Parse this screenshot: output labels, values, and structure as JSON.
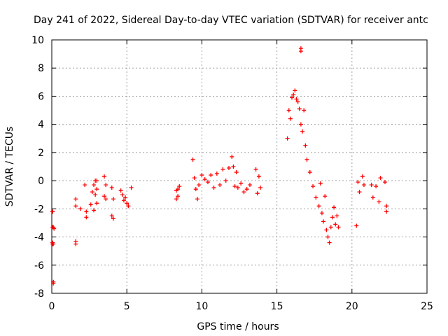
{
  "chart_data": {
    "type": "scatter",
    "title": "Day 241 of 2022, Sidereal Day-to-day VTEC variation (SDTVAR) for receiver antc",
    "xlabel": "GPS time / hours",
    "ylabel": "SDTVAR / TECUs",
    "xlim": [
      0,
      25
    ],
    "ylim": [
      -8,
      10
    ],
    "xticks": [
      "0",
      "5",
      "10",
      "15",
      "20",
      "25"
    ],
    "yticks": [
      "-8",
      "-6",
      "-4",
      "-2",
      "0",
      "2",
      "4",
      "6",
      "8",
      "10"
    ],
    "grid": true,
    "marker": "+",
    "color": "#ff0000",
    "series": [
      {
        "name": "SDTVAR",
        "x": [
          0.05,
          0.05,
          0.05,
          0.1,
          0.1,
          0.1,
          0.1,
          0.05,
          0.05,
          0.1,
          0.15,
          1.6,
          1.6,
          1.6,
          1.6,
          1.9,
          2.2,
          2.3,
          2.3,
          2.6,
          2.7,
          2.8,
          2.8,
          2.9,
          2.9,
          3.0,
          3.0,
          3.0,
          3.5,
          3.5,
          3.6,
          3.6,
          4.0,
          4.0,
          4.1,
          4.1,
          4.6,
          4.7,
          4.8,
          4.9,
          5.0,
          5.1,
          5.3,
          8.3,
          8.3,
          8.4,
          8.4,
          8.5,
          9.4,
          9.5,
          9.6,
          9.7,
          9.8,
          10.0,
          10.2,
          10.4,
          10.6,
          10.8,
          11.0,
          11.2,
          11.4,
          11.6,
          11.8,
          12.0,
          12.1,
          12.2,
          12.3,
          12.4,
          12.6,
          12.8,
          13.0,
          13.2,
          13.6,
          13.7,
          13.8,
          13.9,
          15.7,
          15.8,
          15.9,
          16.0,
          16.1,
          16.2,
          16.3,
          16.4,
          16.5,
          16.6,
          16.7,
          16.8,
          16.9,
          17.0,
          17.2,
          17.4,
          17.6,
          17.8,
          17.9,
          18.0,
          18.1,
          18.2,
          18.3,
          18.4,
          18.5,
          18.6,
          18.7,
          18.8,
          18.9,
          19.0,
          19.1,
          16.6,
          16.6,
          20.3,
          20.4,
          20.5,
          20.7,
          20.8,
          21.3,
          21.4,
          21.6,
          21.8,
          21.9,
          22.2,
          22.3,
          22.3
        ],
        "y": [
          -2.2,
          -3.3,
          -4.5,
          -7.2,
          -7.3,
          -3.3,
          -4.5,
          -2.2,
          -4.4,
          -7.2,
          -3.4,
          -4.3,
          -4.5,
          -1.8,
          -1.3,
          -2.0,
          -0.3,
          -2.6,
          -2.2,
          -1.7,
          -0.8,
          -0.3,
          -2.1,
          0.0,
          -1.0,
          -1.6,
          -0.6,
          0.0,
          0.3,
          -1.1,
          -0.3,
          -1.3,
          -2.5,
          -0.5,
          -1.3,
          -2.7,
          -0.7,
          -1.0,
          -1.4,
          -1.2,
          -1.6,
          -1.8,
          -0.5,
          -1.3,
          -0.7,
          -1.1,
          -0.6,
          -0.4,
          1.5,
          0.2,
          -0.6,
          -1.3,
          -0.3,
          0.4,
          0.1,
          -0.1,
          0.4,
          -0.5,
          0.5,
          -0.3,
          0.8,
          0.0,
          0.9,
          1.7,
          1.0,
          -0.4,
          0.6,
          -0.5,
          -0.2,
          -0.8,
          -0.6,
          -0.3,
          0.8,
          -0.9,
          0.3,
          -0.5,
          3.0,
          5.0,
          4.4,
          5.9,
          6.1,
          6.4,
          5.8,
          5.6,
          5.1,
          4.0,
          3.5,
          5.0,
          2.5,
          1.5,
          0.6,
          -0.4,
          -1.2,
          -1.8,
          -0.2,
          -2.3,
          -2.9,
          -1.1,
          -3.5,
          -4.0,
          -4.4,
          -3.3,
          -2.6,
          -1.9,
          -3.1,
          -2.5,
          -3.3,
          9.4,
          9.2,
          -3.2,
          -0.1,
          -0.8,
          0.3,
          -0.3,
          -0.3,
          -1.2,
          -0.4,
          -1.5,
          0.2,
          -0.1,
          -1.8,
          -2.2
        ]
      }
    ]
  }
}
